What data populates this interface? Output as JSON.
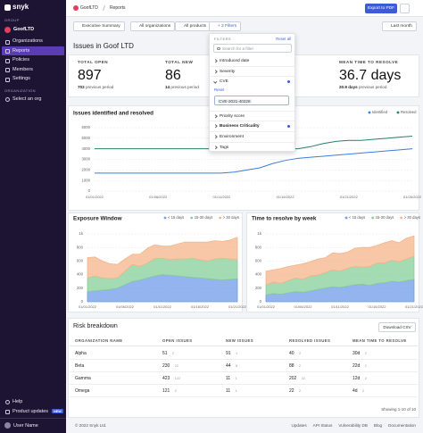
{
  "sidebar": {
    "logo": "snyk",
    "group_label": "GROUP",
    "group": "GoofLTD",
    "nav": [
      "Organizations",
      "Reports",
      "Policies",
      "Members",
      "Settings"
    ],
    "org_label": "ORGANIZATION",
    "org": "Select an org",
    "help": "Help",
    "updates": "Product updates",
    "badge": "NEW",
    "user": "User Name"
  },
  "breadcrumb": [
    "GoofLTD",
    "Reports"
  ],
  "export": "Export to PDF",
  "filters": [
    "Executive Summary",
    "All organizations",
    "All products",
    "+ 2 Filters"
  ],
  "range": "Last month",
  "title": "Issues in Goof LTD",
  "stats": [
    {
      "label": "TOTAL OPEN",
      "value": "897",
      "previous": "702",
      "previous_text": "previous period"
    },
    {
      "label": "TOTAL NEW",
      "value": "86",
      "previous": "14",
      "previous_text": "previous period"
    },
    {
      "label": "MEAN TIME TO RESOLVE",
      "value": "36.7 days",
      "previous": "20.9 days",
      "previous_text": "previous period"
    }
  ],
  "dropdown": {
    "heading": "FILTERS",
    "reset_all": "Reset all",
    "search": "Search for a filter",
    "items": [
      "Introduced date",
      "Severity",
      "CVE",
      "Priority score",
      "Business Criticality",
      "Environment",
      "Tags"
    ],
    "reset": "Reset",
    "cve_value": "CVE-2021-40228"
  },
  "charts": [
    {
      "type": "line",
      "title": "Issues identified and resolved",
      "categories": [
        "01/01/2022",
        null,
        null,
        null,
        null,
        "01/06/2022",
        null,
        null,
        null,
        null,
        "01/11/2022",
        null,
        null,
        null,
        null,
        "01/16/2022",
        null,
        null,
        null,
        null,
        "01/21/2022",
        null,
        null,
        null,
        null,
        "01/26/2022"
      ],
      "series": [
        {
          "name": "Identified",
          "color": "#3b7dd8",
          "values": [
            1700,
            1700,
            1700,
            1700,
            1700,
            1700,
            1700,
            1700,
            1700,
            1700,
            1700,
            1800,
            2000,
            2200,
            2600,
            2900,
            3100,
            3200,
            3300,
            3400,
            3500,
            3600,
            3700,
            3800,
            3900,
            4000
          ]
        },
        {
          "name": "Resolved",
          "color": "#2a7d6b",
          "values": [
            4000,
            4000,
            4000,
            4000,
            4000,
            4000,
            4000,
            4000,
            4000,
            4000,
            4000,
            4000,
            4000,
            4000,
            4000,
            4000,
            4000,
            4200,
            4500,
            4700,
            4800,
            4800,
            4900,
            5000,
            5100,
            5200
          ]
        }
      ],
      "ylim": [
        0,
        6000
      ],
      "yticks": [
        0,
        1000,
        2000,
        3000,
        4000,
        5000,
        6000
      ],
      "grid": true
    },
    {
      "type": "area",
      "title": "Exposure Window",
      "categories": [
        "01/01/2022",
        null,
        null,
        null,
        null,
        "01/06/2022",
        null,
        null,
        null,
        null,
        "01/11/2022",
        null,
        null,
        null,
        null,
        "01/16/2022",
        null,
        null,
        null,
        null,
        "01/21/2022"
      ],
      "series": [
        {
          "name": "< 15 days",
          "color": "#6f9be8",
          "values": [
            150,
            160,
            170,
            180,
            200,
            250,
            300,
            320,
            350,
            380,
            400,
            390,
            380,
            370,
            360,
            350,
            340,
            330,
            320,
            330,
            340
          ]
        },
        {
          "name": "15-30 days",
          "color": "#86cf98",
          "values": [
            200,
            220,
            180,
            160,
            150,
            200,
            250,
            200,
            220,
            260,
            240,
            230,
            250,
            260,
            280,
            270,
            260,
            300,
            320,
            300,
            280
          ]
        },
        {
          "name": "> 30 days",
          "color": "#f4b489",
          "values": [
            300,
            280,
            250,
            220,
            200,
            180,
            150,
            180,
            220,
            200,
            180,
            200,
            220,
            250,
            240,
            260,
            280,
            270,
            250,
            280,
            330
          ]
        }
      ],
      "ylim": [
        0,
        1000
      ],
      "yticks": [
        0,
        200,
        400,
        600,
        800,
        {
          "value": 1000,
          "label": "1k"
        }
      ],
      "grid": true
    },
    {
      "type": "area",
      "title": "Time to resolve by week",
      "categories": [
        "01/01/2022",
        null,
        null,
        null,
        null,
        "01/06/2022",
        null,
        null,
        null,
        null,
        "01/11/2022",
        null,
        null,
        null,
        null,
        "01/16/2022",
        null,
        null,
        null,
        null,
        "01/21/2022"
      ],
      "series": [
        {
          "name": "< 15 days",
          "color": "#6f9be8",
          "values": [
            100,
            120,
            110,
            130,
            150,
            140,
            160,
            180,
            200,
            220,
            210,
            230,
            250,
            260,
            240,
            270,
            280,
            300,
            290,
            310,
            330
          ]
        },
        {
          "name": "15-30 days",
          "color": "#86cf98",
          "values": [
            150,
            170,
            160,
            180,
            200,
            190,
            220,
            210,
            230,
            250,
            240,
            260,
            270,
            250,
            280,
            300,
            290,
            310,
            300,
            320,
            340
          ]
        },
        {
          "name": "> 30 days",
          "color": "#f4b489",
          "values": [
            200,
            180,
            220,
            210,
            190,
            230,
            210,
            240,
            220,
            250,
            260,
            240,
            270,
            290,
            280,
            260,
            300,
            290,
            280,
            310,
            300
          ]
        }
      ],
      "ylim": [
        0,
        1000
      ],
      "yticks": [
        0,
        200,
        400,
        600,
        800,
        {
          "value": 1000,
          "label": "1k"
        }
      ],
      "grid": true
    }
  ],
  "table": {
    "title": "Risk breakdown",
    "download": "Download CSV",
    "headers": [
      "ORGANIZATION NAME",
      "OPEN ISSUES",
      "NEW ISSUES",
      "RESOLVED ISSUES",
      "MEAN TIME TO RESOLVE"
    ],
    "rows": [
      [
        "Alpha",
        [
          "51",
          "2"
        ],
        [
          "91",
          "1"
        ],
        [
          "40",
          "2"
        ],
        [
          "30d",
          "2"
        ]
      ],
      [
        "Beta",
        [
          "230",
          "22"
        ],
        [
          "44",
          "8"
        ],
        [
          "88",
          "2"
        ],
        [
          "22d",
          "2"
        ]
      ],
      [
        "Gamma",
        [
          "423",
          "122"
        ],
        [
          "11",
          "1"
        ],
        [
          "202",
          "22"
        ],
        [
          "12d",
          "2"
        ]
      ],
      [
        "Omega",
        [
          "121",
          "2"
        ],
        [
          "11",
          "1"
        ],
        [
          "22",
          "2"
        ],
        [
          "4d",
          "2"
        ]
      ]
    ],
    "showing": "Showing 1-10 of 10"
  },
  "footer": {
    "copyright": "© 2022 Snyk Ltd.",
    "links": [
      "Updates",
      "API Status",
      "Vulnerability DB",
      "Blog",
      "Documentation"
    ]
  }
}
